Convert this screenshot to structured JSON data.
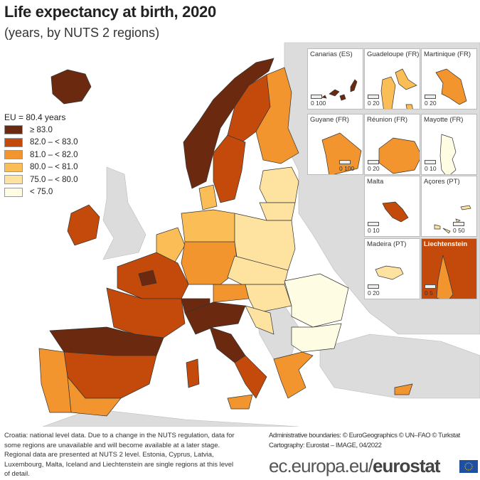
{
  "title": "Life expectancy at birth, 2020",
  "subtitle": "(years, by NUTS 2 regions)",
  "legend": {
    "eu_value": "EU = 80.4 years",
    "classes": [
      {
        "label": "≥ 83.0",
        "color": "#6b2a10"
      },
      {
        "label": "82.0 – < 83.0",
        "color": "#c44a0c"
      },
      {
        "label": "81.0 – < 82.0",
        "color": "#f2952f"
      },
      {
        "label": "80.0 – < 81.0",
        "color": "#fbbd55"
      },
      {
        "label": "75.0 – < 80.0",
        "color": "#fde2a0"
      },
      {
        "label": "< 75.0",
        "color": "#fefde3"
      }
    ],
    "no_data_color": "#dcdcdc"
  },
  "insets": [
    {
      "name": "Canarias (ES)",
      "scale": "0   100",
      "class": 0
    },
    {
      "name": "Guadeloupe (FR)",
      "scale": "0   20",
      "class": 3
    },
    {
      "name": "Martinique (FR)",
      "scale": "0   20",
      "class": 2
    },
    {
      "name": "Guyane (FR)",
      "scale": "0   100",
      "class": 2
    },
    {
      "name": "Réunion (FR)",
      "scale": "0   20",
      "class": 2
    },
    {
      "name": "Mayotte (FR)",
      "scale": "0   10",
      "class": 5
    },
    {
      "name": "Malta",
      "scale": "0   10",
      "class": 1
    },
    {
      "name": "Açores (PT)",
      "scale": "0   50",
      "class": 4
    },
    {
      "name": "Madeira (PT)",
      "scale": "0   20",
      "class": 4
    },
    {
      "name": "Liechtenstein",
      "scale": "0   5",
      "class": 2
    }
  ],
  "notes": "Croatia: national level data. Due to a change in the NUTS regulation, data for some regions are unavailable and will become available at a later stage. Regional data are presented at NUTS 2 level. Estonia, Cyprus, Latvia, Luxembourg, Malta, Iceland and Liechtenstein are single regions at this level of detail.",
  "credits": {
    "boundaries": "Administrative boundaries: © EuroGeographics © UN–FAO © Turkstat",
    "cartography": "Cartography: Eurostat – IMAGE, 04/2022"
  },
  "brand": {
    "domain": "ec.europa.eu/",
    "name": "eurostat"
  }
}
